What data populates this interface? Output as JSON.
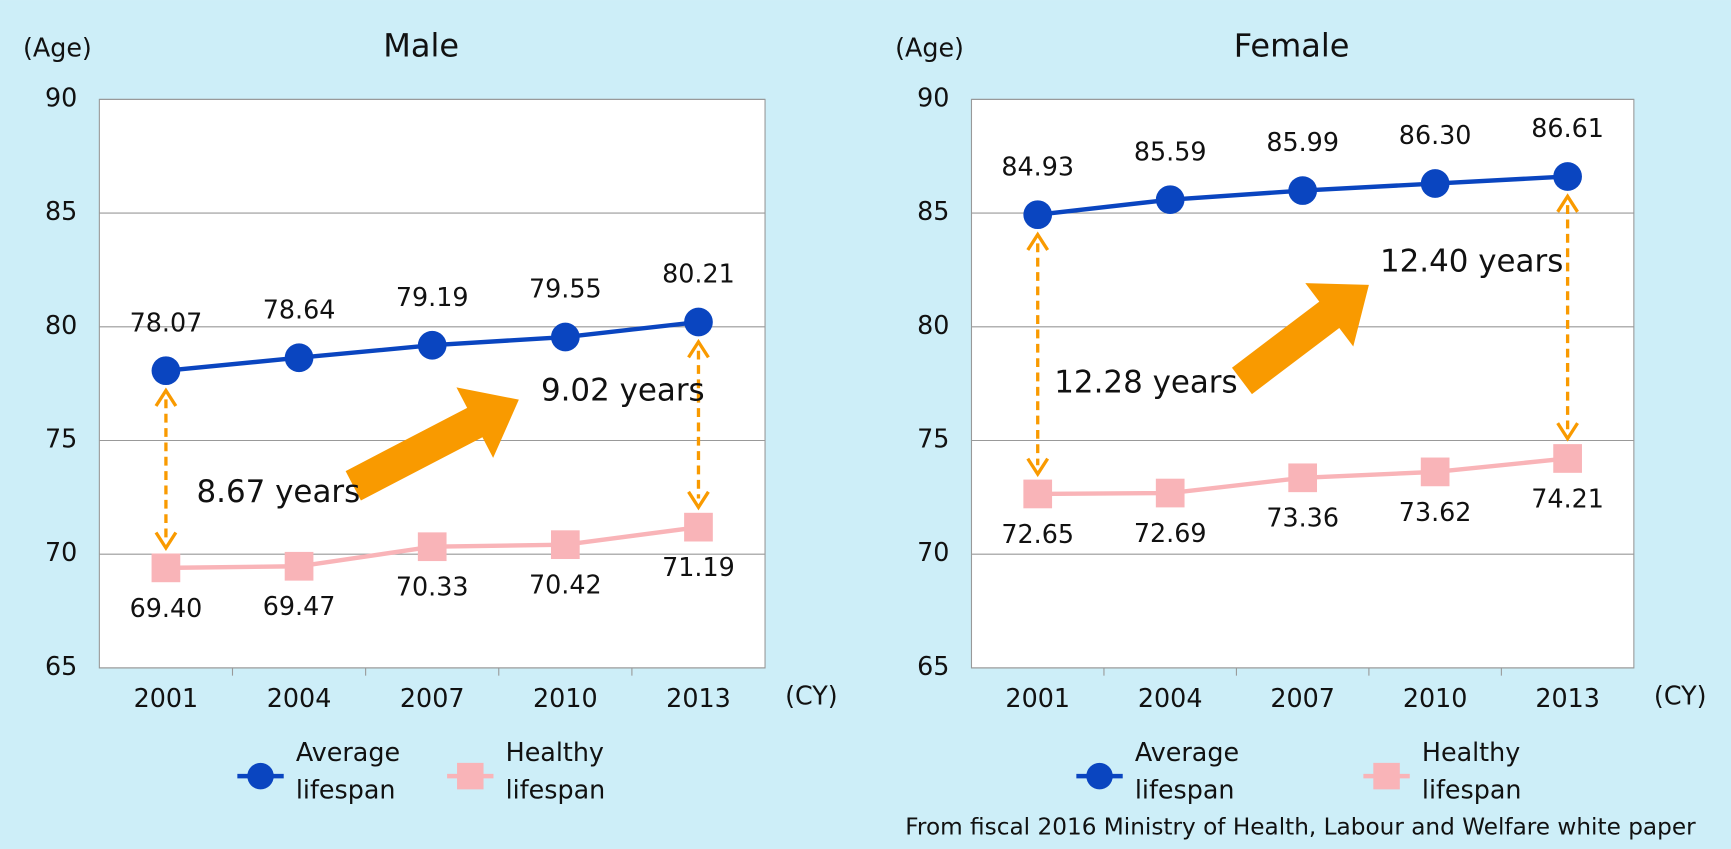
{
  "chart_data": [
    {
      "type": "line",
      "title": "Male",
      "y_label": "(Age)",
      "x_label": "(CY)",
      "categories": [
        "2001",
        "2004",
        "2007",
        "2010",
        "2013"
      ],
      "series": [
        {
          "name": "Average lifespan",
          "color": "#0a45c0",
          "marker": "circle",
          "values": [
            78.07,
            78.64,
            79.19,
            79.55,
            80.21
          ],
          "value_labels": [
            "78.07",
            "78.64",
            "79.19",
            "79.55",
            "80.21"
          ]
        },
        {
          "name": "Healthy lifespan",
          "color": "#f9b4b8",
          "marker": "square",
          "values": [
            69.4,
            69.47,
            70.33,
            70.42,
            71.19
          ],
          "value_labels": [
            "69.40",
            "69.47",
            "70.33",
            "70.42",
            "71.19"
          ]
        }
      ],
      "ylim": [
        65,
        90
      ],
      "yticks": [
        65,
        70,
        75,
        80,
        85,
        90
      ],
      "grid": true,
      "annotations": [
        "8.67 years",
        "9.02 years"
      ]
    },
    {
      "type": "line",
      "title": "Female",
      "y_label": "(Age)",
      "x_label": "(CY)",
      "categories": [
        "2001",
        "2004",
        "2007",
        "2010",
        "2013"
      ],
      "series": [
        {
          "name": "Average lifespan",
          "color": "#0a45c0",
          "marker": "circle",
          "values": [
            84.93,
            85.59,
            85.99,
            86.3,
            86.61
          ],
          "value_labels": [
            "84.93",
            "85.59",
            "85.99",
            "86.30",
            "86.61"
          ]
        },
        {
          "name": "Healthy lifespan",
          "color": "#f9b4b8",
          "marker": "square",
          "values": [
            72.65,
            72.69,
            73.36,
            73.62,
            74.21
          ],
          "value_labels": [
            "72.65",
            "72.69",
            "73.36",
            "73.62",
            "74.21"
          ]
        }
      ],
      "ylim": [
        65,
        90
      ],
      "yticks": [
        65,
        70,
        75,
        80,
        85,
        90
      ],
      "grid": true,
      "annotations": [
        "12.28 years",
        "12.40 years"
      ]
    }
  ],
  "source": "From fiscal 2016 Ministry of Health, Labour and Welfare white paper"
}
